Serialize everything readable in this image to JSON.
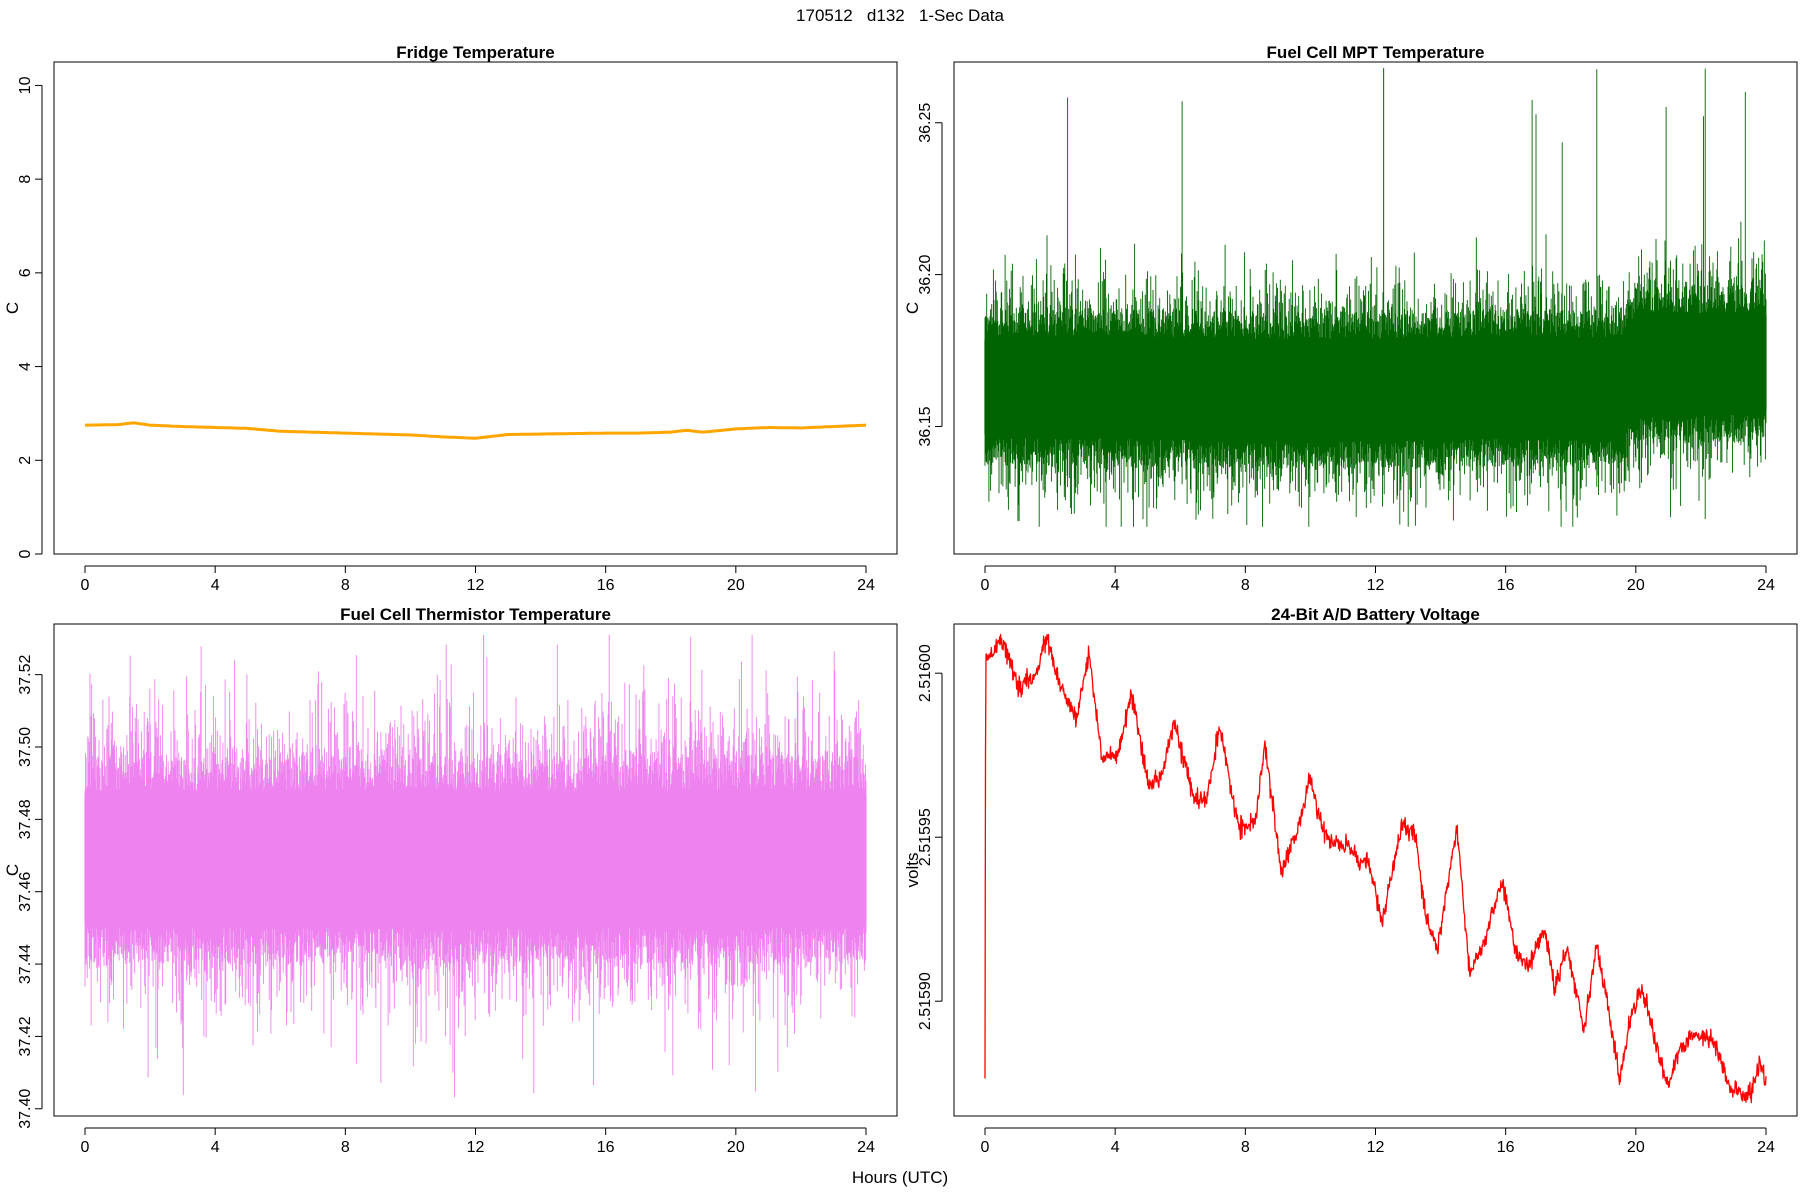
{
  "title": "170512   d132   1-Sec Data",
  "xlabel": "Hours (UTC)",
  "chart_data": [
    {
      "type": "line",
      "title": "Fridge Temperature",
      "ylabel": "C",
      "xlabel": "Hours (UTC)",
      "color": "#FFA500",
      "xlim": [
        0,
        24
      ],
      "ylim": [
        0,
        10.5
      ],
      "xticks": [
        0,
        4,
        8,
        12,
        16,
        20,
        24
      ],
      "yticks": [
        0,
        2,
        4,
        6,
        8,
        10
      ],
      "ytick_labels": [
        "0",
        "2",
        "4",
        "6",
        "8",
        "10"
      ],
      "x": [
        0,
        1,
        1.5,
        2,
        3,
        4,
        5,
        6,
        7,
        8,
        9,
        10,
        11,
        12,
        13,
        14,
        15,
        16,
        17,
        18,
        18.5,
        19,
        20,
        21,
        22,
        23,
        24
      ],
      "y": [
        2.75,
        2.76,
        2.8,
        2.75,
        2.72,
        2.7,
        2.68,
        2.62,
        2.6,
        2.58,
        2.56,
        2.54,
        2.5,
        2.47,
        2.55,
        2.56,
        2.57,
        2.58,
        2.58,
        2.6,
        2.64,
        2.6,
        2.67,
        2.7,
        2.69,
        2.72,
        2.75
      ],
      "noise": 0.0
    },
    {
      "type": "line",
      "title": "Fuel Cell MPT Temperature",
      "ylabel": "C",
      "xlabel": "Hours (UTC)",
      "color": "#006400",
      "xlim": [
        0,
        24
      ],
      "ylim": [
        36.108,
        36.27
      ],
      "xticks": [
        0,
        4,
        8,
        12,
        16,
        20,
        24
      ],
      "yticks": [
        36.15,
        36.2,
        36.25
      ],
      "ytick_labels": [
        "36.15",
        "36.20",
        "36.25"
      ],
      "x": [
        0,
        4,
        8,
        12,
        16,
        19.5,
        20,
        24
      ],
      "y": [
        36.163,
        36.163,
        36.162,
        36.162,
        36.163,
        36.162,
        36.17,
        36.171
      ],
      "band_half_width": 0.026,
      "max_value": 36.268,
      "min_value": 36.117
    },
    {
      "type": "line",
      "title": "Fuel Cell Thermistor Temperature",
      "ylabel": "C",
      "xlabel": "Hours (UTC)",
      "color": "#EE82EE",
      "xlim": [
        0,
        24
      ],
      "ylim": [
        37.398,
        37.534
      ],
      "xticks": [
        0,
        4,
        8,
        12,
        16,
        20,
        24
      ],
      "yticks": [
        37.4,
        37.42,
        37.44,
        37.46,
        37.48,
        37.5,
        37.52
      ],
      "ytick_labels": [
        "37.40",
        "37.42",
        "37.44",
        "37.46",
        "37.48",
        "37.50",
        "37.52"
      ],
      "x": [
        0,
        24
      ],
      "y": [
        37.469,
        37.469
      ],
      "band_half_width": 0.029,
      "max_value": 37.531,
      "min_value": 37.402
    },
    {
      "type": "line",
      "title": "24-Bit A/D Battery Voltage",
      "ylabel": "volts",
      "xlabel": "Hours (UTC)",
      "color": "#FF0000",
      "xlim": [
        0,
        24
      ],
      "ylim": [
        2.515865,
        2.516015
      ],
      "xticks": [
        0,
        4,
        8,
        12,
        16,
        20,
        24
      ],
      "yticks": [
        2.5159,
        2.51595,
        2.516
      ],
      "ytick_labels": [
        "2.51590",
        "2.51595",
        "2.51600"
      ],
      "x": [
        0,
        0.02,
        0.05,
        0.3,
        0.5,
        1.0,
        1.5,
        1.9,
        2.3,
        2.8,
        3.2,
        3.6,
        4.1,
        4.5,
        5.0,
        5.4,
        5.8,
        6.4,
        6.8,
        7.2,
        7.8,
        8.3,
        8.6,
        9.1,
        9.6,
        10.0,
        10.4,
        10.8,
        11.2,
        11.5,
        11.8,
        12.2,
        12.8,
        13.2,
        13.5,
        13.9,
        14.5,
        14.9,
        15.3,
        15.9,
        16.3,
        16.7,
        17.2,
        17.5,
        17.9,
        18.4,
        18.8,
        19.2,
        19.5,
        19.9,
        20.2,
        20.7,
        21.0,
        21.3,
        21.8,
        22.4,
        22.9,
        23.5,
        23.8,
        24.0
      ],
      "y": [
        2.515878,
        2.516008,
        2.516004,
        2.516008,
        2.516011,
        2.515996,
        2.515998,
        2.516011,
        2.515996,
        2.515986,
        2.516006,
        2.515974,
        2.515975,
        2.515994,
        2.515966,
        2.515968,
        2.515986,
        2.515962,
        2.515961,
        2.515983,
        2.515953,
        2.515954,
        2.515978,
        2.51594,
        2.515952,
        2.515968,
        2.515951,
        2.515948,
        2.515947,
        2.515943,
        2.515942,
        2.515924,
        2.515953,
        2.515952,
        2.515928,
        2.515916,
        2.515953,
        2.515908,
        2.515917,
        2.515937,
        2.515915,
        2.515911,
        2.515922,
        2.515904,
        2.515916,
        2.515892,
        2.515917,
        2.515895,
        2.515876,
        2.515898,
        2.515904,
        2.515884,
        2.515874,
        2.515884,
        2.51589,
        2.515888,
        2.515873,
        2.515871,
        2.515881,
        2.515876
      ],
      "noise": 1.4e-06
    }
  ]
}
